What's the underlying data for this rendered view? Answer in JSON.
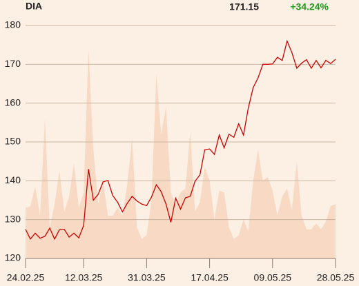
{
  "chart_data": {
    "type": "line",
    "title": "DIA",
    "last_price": "171.15",
    "change": "+34.24%",
    "change_color": "#1c9a1c",
    "categories": [
      "24.02.25",
      null,
      null,
      null,
      null,
      null,
      null,
      null,
      null,
      null,
      null,
      null,
      "12.03.25",
      null,
      null,
      null,
      null,
      null,
      null,
      null,
      null,
      null,
      null,
      null,
      null,
      "31.03.25",
      null,
      null,
      null,
      null,
      null,
      null,
      null,
      null,
      null,
      null,
      null,
      null,
      "17.04.25",
      null,
      null,
      null,
      null,
      null,
      null,
      null,
      null,
      null,
      null,
      null,
      null,
      "09.05.25",
      null,
      null,
      null,
      null,
      null,
      null,
      null,
      null,
      null,
      null,
      null,
      null,
      "28.05.25"
    ],
    "series": [
      {
        "color": "#cc0000",
        "values": [
          127.5,
          125,
          126.5,
          125.2,
          125.7,
          127.8,
          125,
          127.4,
          127.5,
          125.5,
          126.5,
          125.3,
          128.5,
          143,
          135,
          136.5,
          139.7,
          140.1,
          136.2,
          134.5,
          132,
          134.2,
          136,
          134.8,
          134,
          133.6,
          135.8,
          139,
          137.2,
          134,
          129.3,
          135.5,
          132.7,
          135.6,
          136,
          139.9,
          141.5,
          148,
          148.2,
          146.8,
          151.8,
          148.5,
          152,
          151.2,
          154.7,
          151.8,
          158.8,
          164,
          166.5,
          170,
          170,
          170.1,
          171.8,
          171,
          176,
          173,
          169,
          170.3,
          171.2,
          169,
          171,
          169.1,
          171,
          170.2,
          171.3
        ]
      },
      {
        "type": "area",
        "color": "#f8dac4",
        "values": [
          133,
          133.5,
          138.5,
          131,
          156,
          128,
          134,
          142.5,
          132,
          136,
          144.5,
          133,
          137,
          174,
          148,
          134,
          140,
          131,
          131,
          133,
          131,
          139,
          151,
          128,
          125,
          126,
          135,
          167.5,
          152,
          159,
          137,
          134,
          137,
          138,
          152.5,
          132,
          134.5,
          143.5,
          140,
          130,
          137.5,
          137,
          128,
          125,
          126,
          130,
          127,
          140,
          148,
          140,
          141,
          137.5,
          131,
          136,
          138,
          132.5,
          145,
          131,
          127.5,
          127.5,
          129,
          127.5,
          129.5,
          133.5,
          134
        ]
      }
    ],
    "ylim": [
      120,
      180
    ],
    "yticks": [
      120,
      130,
      140,
      150,
      160,
      170,
      180
    ],
    "grid": true
  }
}
